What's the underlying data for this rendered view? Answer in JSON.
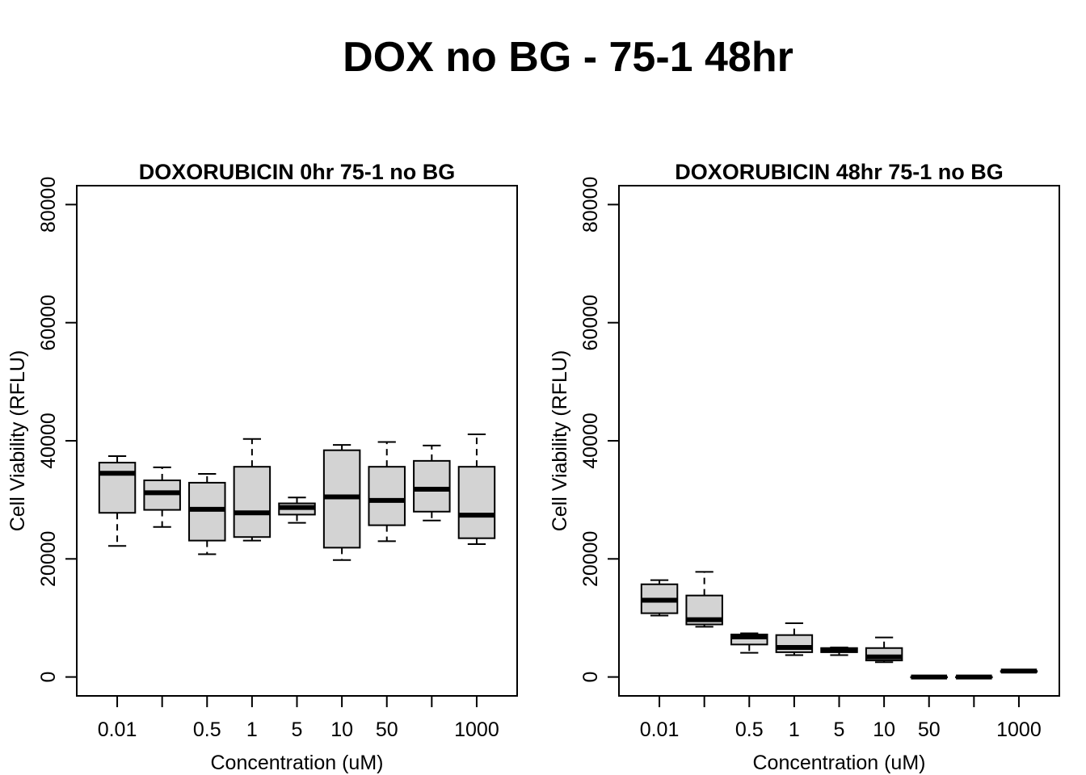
{
  "figure": {
    "title": "DOX no BG - 75-1 48hr"
  },
  "style": {
    "box_fill": "#d3d3d3",
    "line_color": "#000000",
    "background": "#ffffff"
  },
  "chart_data": [
    {
      "type": "boxplot",
      "title": "DOXORUBICIN 0hr 75-1 no BG",
      "xlabel": "Concentration (uM)",
      "ylabel": "Cell Viability (RFLU)",
      "ylim": [
        0,
        80000
      ],
      "yticks": [
        0,
        20000,
        40000,
        60000,
        80000
      ],
      "ytick_labels": [
        "0",
        "20000",
        "40000",
        "60000",
        "80000"
      ],
      "categories": [
        "0.01",
        "",
        "0.5",
        "1",
        "5",
        "10",
        "50",
        "",
        "1000"
      ],
      "boxes": [
        {
          "min": 22200,
          "q1": 27800,
          "median": 34500,
          "q3": 36300,
          "max": 37400
        },
        {
          "min": 25400,
          "q1": 28300,
          "median": 31200,
          "q3": 33300,
          "max": 35500
        },
        {
          "min": 20800,
          "q1": 23100,
          "median": 28400,
          "q3": 32900,
          "max": 34400
        },
        {
          "min": 23100,
          "q1": 23700,
          "median": 27800,
          "q3": 35600,
          "max": 40300
        },
        {
          "min": 26100,
          "q1": 27500,
          "median": 28700,
          "q3": 29400,
          "max": 30400
        },
        {
          "min": 19800,
          "q1": 21900,
          "median": 30500,
          "q3": 38400,
          "max": 39300
        },
        {
          "min": 23000,
          "q1": 25700,
          "median": 29900,
          "q3": 35600,
          "max": 39800
        },
        {
          "min": 26500,
          "q1": 28000,
          "median": 31800,
          "q3": 36600,
          "max": 39200
        },
        {
          "min": 22500,
          "q1": 23500,
          "median": 27400,
          "q3": 35600,
          "max": 41100
        }
      ]
    },
    {
      "type": "boxplot",
      "title": "DOXORUBICIN 48hr 75-1 no BG",
      "xlabel": "Concentration (uM)",
      "ylabel": "Cell Viability (RFLU)",
      "ylim": [
        0,
        80000
      ],
      "yticks": [
        0,
        20000,
        40000,
        60000,
        80000
      ],
      "ytick_labels": [
        "0",
        "20000",
        "40000",
        "60000",
        "80000"
      ],
      "categories": [
        "0.01",
        "",
        "0.5",
        "1",
        "5",
        "10",
        "50",
        "",
        "1000"
      ],
      "boxes": [
        {
          "min": 10400,
          "q1": 10800,
          "median": 13000,
          "q3": 15700,
          "max": 16400
        },
        {
          "min": 8500,
          "q1": 8900,
          "median": 9700,
          "q3": 13800,
          "max": 17800
        },
        {
          "min": 4100,
          "q1": 5500,
          "median": 6800,
          "q3": 7200,
          "max": 7400
        },
        {
          "min": 3700,
          "q1": 4200,
          "median": 5000,
          "q3": 7100,
          "max": 9100
        },
        {
          "min": 3700,
          "q1": 4200,
          "median": 4500,
          "q3": 4900,
          "max": 5000
        },
        {
          "min": 2500,
          "q1": 2800,
          "median": 3400,
          "q3": 4900,
          "max": 6700
        },
        {
          "min": 0,
          "q1": 0,
          "median": 0,
          "q3": 0,
          "max": 0
        },
        {
          "min": 0,
          "q1": 0,
          "median": 0,
          "q3": 0,
          "max": 0
        },
        {
          "min": 800,
          "q1": 900,
          "median": 1000,
          "q3": 1000,
          "max": 1100
        }
      ]
    }
  ]
}
